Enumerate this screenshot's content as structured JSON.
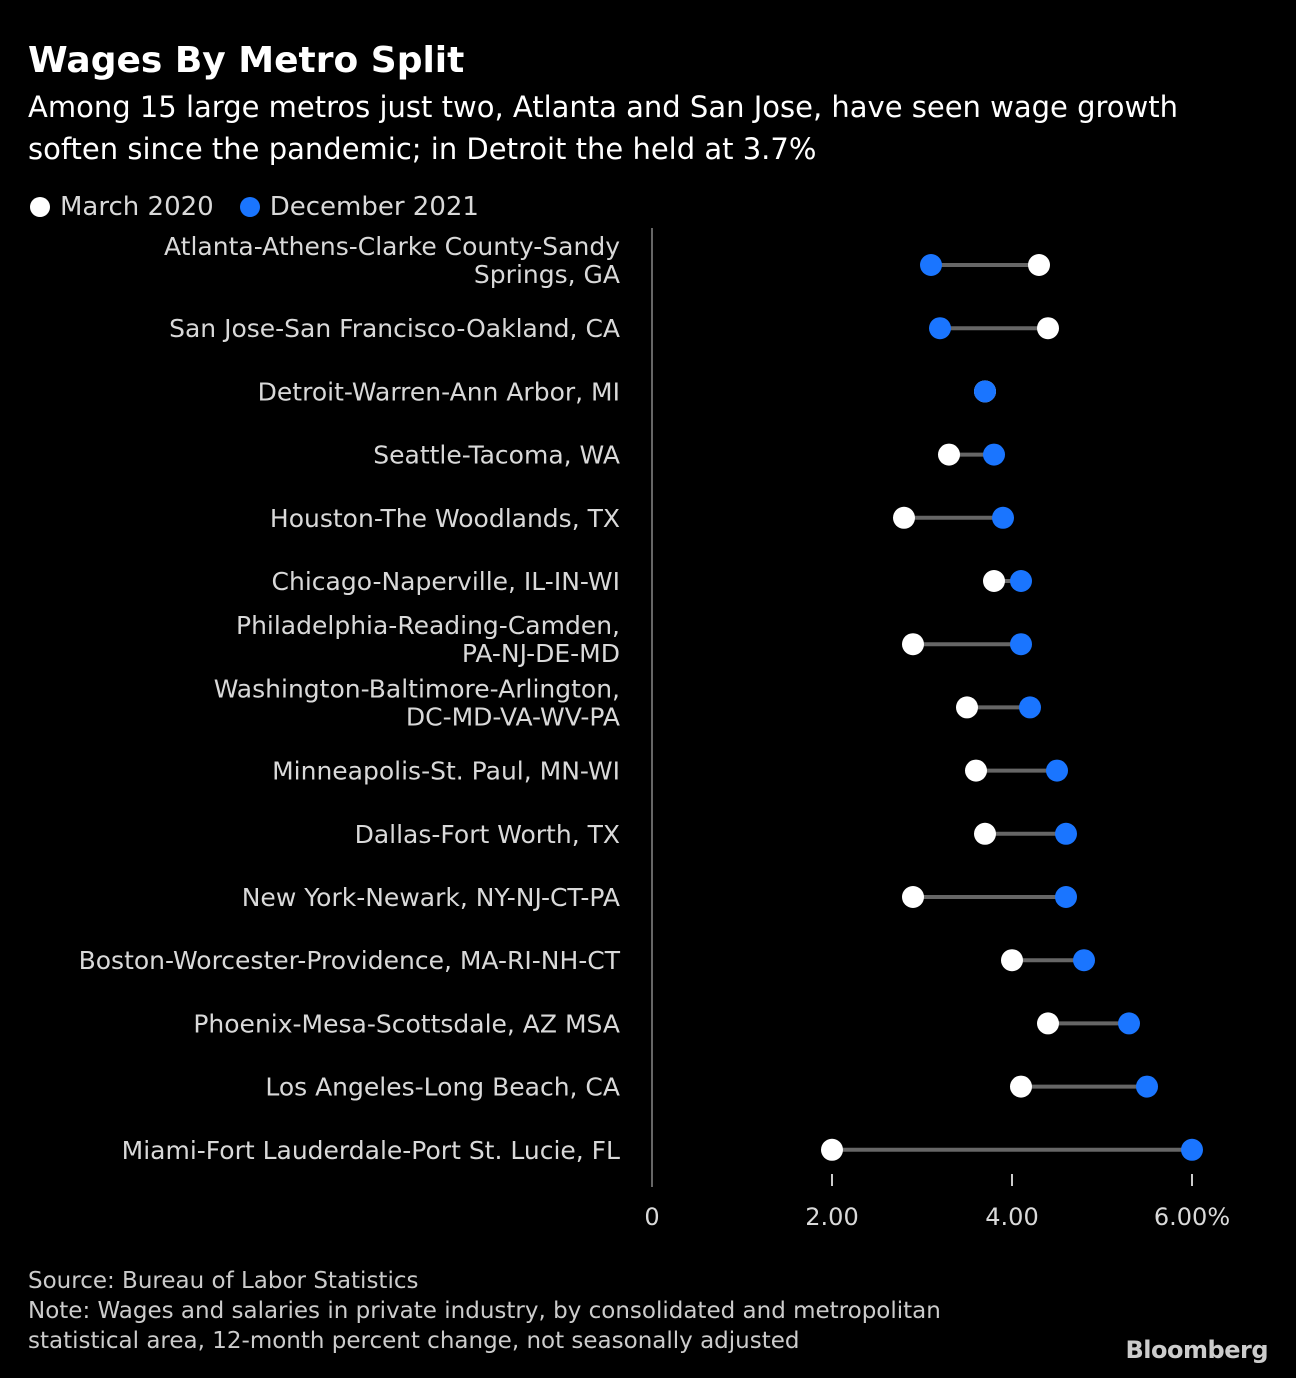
{
  "title": "Wages By Metro Split",
  "subtitle": "Among 15 large metros just two, Atlanta and San Jose, have seen wage growth soften since the pandemic; in Detroit the held at 3.7%",
  "colors": {
    "march_2020": "#ffffff",
    "december_2021": "#1a75ff",
    "connector": "#666666",
    "axis": "#666666",
    "text": "#d9d9d9"
  },
  "chart_data": {
    "type": "dumbbell",
    "xlim": [
      0,
      6.5
    ],
    "xticks": [
      0,
      2,
      4,
      6
    ],
    "xtick_labels": [
      "0",
      "2.00",
      "4.00",
      "6.00%"
    ],
    "legend_placement": "top-left",
    "series": [
      {
        "name": "March 2020",
        "values": [
          4.3,
          4.4,
          3.7,
          3.3,
          2.8,
          3.8,
          2.9,
          3.5,
          3.6,
          3.7,
          2.9,
          4.0,
          4.4,
          4.1,
          2.0
        ]
      },
      {
        "name": "December 2021",
        "values": [
          3.1,
          3.2,
          3.7,
          3.8,
          3.9,
          4.1,
          4.1,
          4.2,
          4.5,
          4.6,
          4.6,
          4.8,
          5.3,
          5.5,
          6.0
        ]
      }
    ],
    "categories": [
      [
        "Atlanta-Athens-Clarke County-Sandy",
        "Springs, GA"
      ],
      [
        "San Jose-San Francisco-Oakland, CA"
      ],
      [
        "Detroit-Warren-Ann Arbor, MI"
      ],
      [
        "Seattle-Tacoma, WA"
      ],
      [
        "Houston-The Woodlands, TX"
      ],
      [
        "Chicago-Naperville, IL-IN-WI"
      ],
      [
        "Philadelphia-Reading-Camden,",
        "PA-NJ-DE-MD"
      ],
      [
        "Washington-Baltimore-Arlington,",
        "DC-MD-VA-WV-PA"
      ],
      [
        "Minneapolis-St. Paul, MN-WI"
      ],
      [
        "Dallas-Fort Worth, TX"
      ],
      [
        "New York-Newark, NY-NJ-CT-PA"
      ],
      [
        "Boston-Worcester-Providence, MA-RI-NH-CT"
      ],
      [
        "Phoenix-Mesa-Scottsdale, AZ MSA"
      ],
      [
        "Los Angeles-Long Beach, CA"
      ],
      [
        "Miami-Fort Lauderdale-Port St. Lucie, FL"
      ]
    ]
  },
  "footer": {
    "source": "Source: Bureau of Labor Statistics",
    "note_line1": "Note: Wages and salaries in private industry, by consolidated and metropolitan",
    "note_line2": "statistical area, 12-month percent change, not seasonally adjusted"
  },
  "logo": "Bloomberg"
}
